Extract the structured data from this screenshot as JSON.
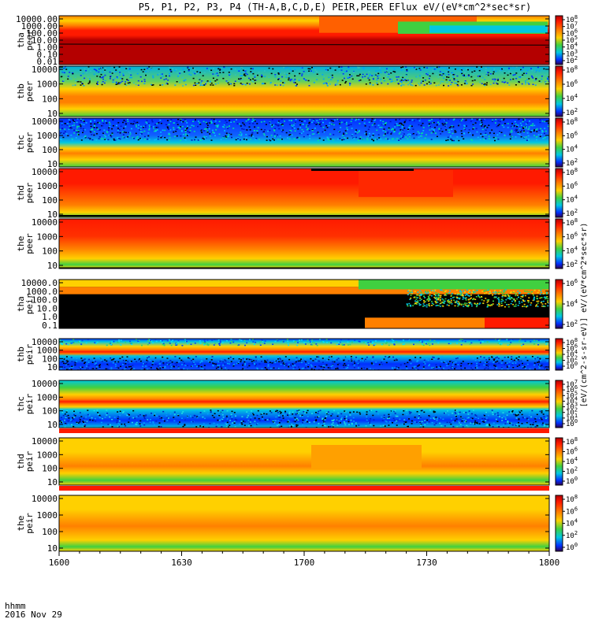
{
  "title": "P5, P1, P2, P3, P4 (TH-A,B,C,D,E) PEIR,PEER EFlux eV/(eV*cm^2*sec*sr)",
  "time_axis": {
    "ticks": [
      "1600",
      "1630",
      "1700",
      "1730",
      "1800"
    ],
    "label_line1": "hhmm",
    "label_line2": "2016 Nov 29"
  },
  "colorbar_label": "[eV/(cm^2-s-sr-eV)] eV/(eV*cm^2*sec*sr)",
  "colors": {
    "dark_red": "#b40000",
    "red": "#ff1a00",
    "orange": "#ff8000",
    "yellow": "#ffd000",
    "green": "#40d040",
    "cyan": "#00c8e0",
    "blue": "#0030ff",
    "black": "#000000"
  },
  "chart_data": [
    {
      "type": "heatmap",
      "name_line1": "tha",
      "name_line2": "peer",
      "yticks": [
        "10000.00",
        "1000.00",
        "100.00",
        "10.00",
        "1.00",
        "0.10",
        "0.01"
      ],
      "cbticks": [
        "10^8",
        "10^7",
        "10^6",
        "10^5",
        "10^4",
        "10^3",
        "10^2"
      ],
      "pattern": "tha_peer"
    },
    {
      "type": "heatmap",
      "name_line1": "thb",
      "name_line2": "peer",
      "yticks": [
        "10000",
        "1000",
        "100",
        "10"
      ],
      "cbticks": [
        "10^8",
        "10^6",
        "10^4",
        "10^2"
      ],
      "pattern": "speckle_top"
    },
    {
      "type": "heatmap",
      "name_line1": "thc",
      "name_line2": "peer",
      "yticks": [
        "10000",
        "1000",
        "100",
        "10"
      ],
      "cbticks": [
        "10^8",
        "10^6",
        "10^4",
        "10^2"
      ],
      "pattern": "speckle_top_blue"
    },
    {
      "type": "heatmap",
      "name_line1": "thd",
      "name_line2": "peer",
      "yticks": [
        "10000",
        "1000",
        "100",
        "10"
      ],
      "cbticks": [
        "10^8",
        "10^6",
        "10^4",
        "10^2"
      ],
      "pattern": "thd_peer"
    },
    {
      "type": "heatmap",
      "name_line1": "the",
      "name_line2": "peer",
      "yticks": [
        "10000",
        "1000",
        "100",
        "10"
      ],
      "cbticks": [
        "10^8",
        "10^6",
        "10^4",
        "10^2"
      ],
      "pattern": "the_peer"
    },
    {
      "type": "heatmap",
      "name_line1": "tha",
      "name_line2": "peir",
      "yticks": [
        "10000.0",
        "1000.0",
        "100.0",
        "10.0",
        "1.0",
        "0.1"
      ],
      "cbticks": [
        "10^6",
        "10^4",
        "10^2"
      ],
      "pattern": "tha_peir"
    },
    {
      "type": "heatmap",
      "name_line1": "thb",
      "name_line2": "peir",
      "yticks": [
        "10000",
        "1000",
        "100",
        "10"
      ],
      "cbticks": [
        "10^8",
        "10^6",
        "10^4",
        "10^2",
        "10^0"
      ],
      "pattern": "band_blue"
    },
    {
      "type": "heatmap",
      "name_line1": "thc",
      "name_line2": "peir",
      "yticks": [
        "10000",
        "1000",
        "100",
        "10"
      ],
      "cbticks": [
        "10^7",
        "10^6",
        "10^5",
        "10^4",
        "10^3",
        "10^2",
        "10^1",
        "10^0"
      ],
      "pattern": "band_blue2"
    },
    {
      "type": "heatmap",
      "name_line1": "thd",
      "name_line2": "peir",
      "yticks": [
        "10000",
        "1000",
        "100",
        "10"
      ],
      "cbticks": [
        "10^8",
        "10^6",
        "10^4",
        "10^2",
        "10^0"
      ],
      "pattern": "green_top"
    },
    {
      "type": "heatmap",
      "name_line1": "the",
      "name_line2": "peir",
      "yticks": [
        "10000",
        "1000",
        "100",
        "10"
      ],
      "cbticks": [
        "10^8",
        "10^6",
        "10^4",
        "10^2",
        "10^0"
      ],
      "pattern": "green_top2"
    }
  ]
}
